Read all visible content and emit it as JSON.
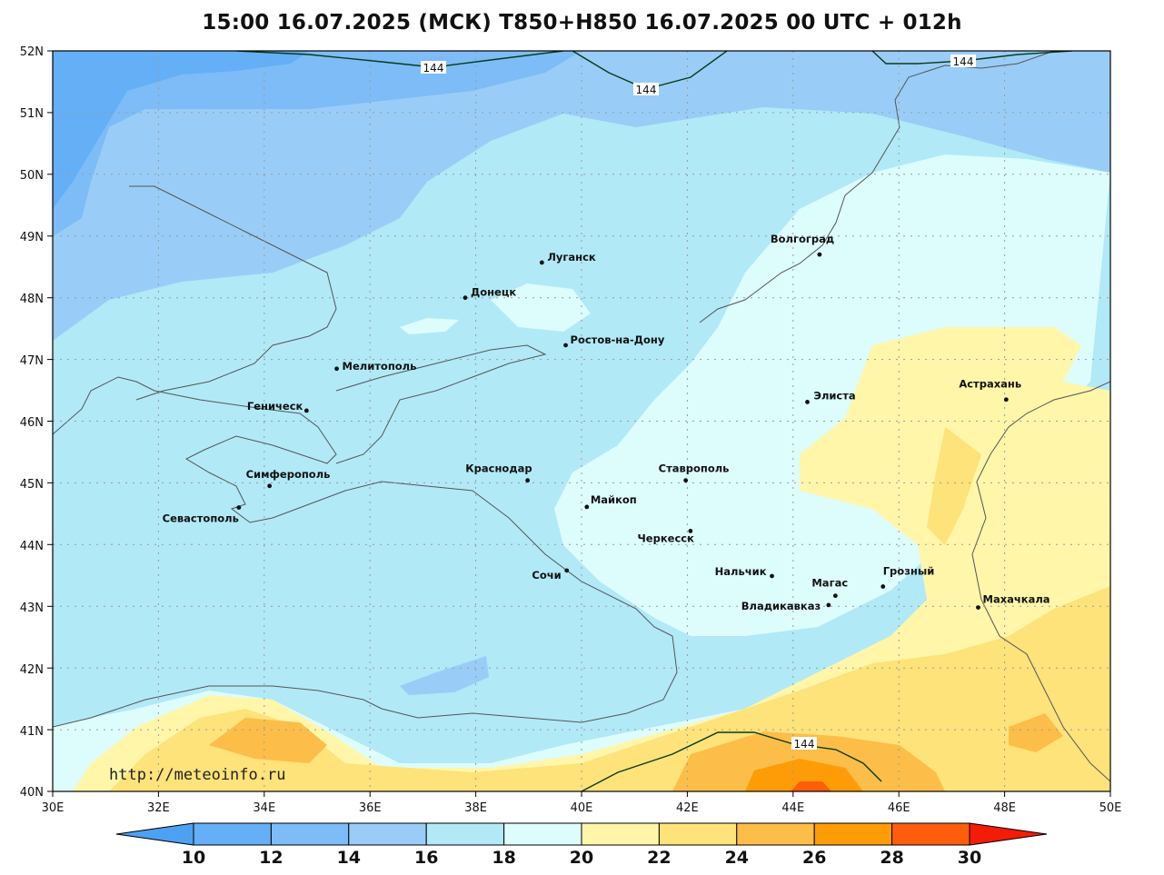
{
  "title": "15:00 16.07.2025 (МСК) T850+H850 16.07.2025 00 UTC + 012h",
  "watermark": "http://meteoinfo.ru",
  "map": {
    "lon_range": [
      30,
      50
    ],
    "lat_range": [
      40,
      52
    ],
    "lon_ticks": [
      "30E",
      "32E",
      "34E",
      "36E",
      "38E",
      "40E",
      "42E",
      "44E",
      "46E",
      "48E",
      "50E"
    ],
    "lat_ticks": [
      "52N",
      "51N",
      "50N",
      "49N",
      "48N",
      "47N",
      "46N",
      "45N",
      "44N",
      "43N",
      "42N",
      "41N",
      "40N"
    ],
    "gridlines": true
  },
  "contour_labels": [
    "144",
    "144",
    "144",
    "144"
  ],
  "cities": [
    {
      "name": "Луганск",
      "lon": 39.25,
      "lat": 48.57
    },
    {
      "name": "Донецк",
      "lon": 37.8,
      "lat": 48.0
    },
    {
      "name": "Ростов-на-Дону",
      "lon": 39.7,
      "lat": 47.23
    },
    {
      "name": "Мелитополь",
      "lon": 35.37,
      "lat": 46.85
    },
    {
      "name": "Геническ",
      "lon": 34.8,
      "lat": 46.17
    },
    {
      "name": "Симферополь",
      "lon": 34.1,
      "lat": 44.95
    },
    {
      "name": "Севастополь",
      "lon": 33.52,
      "lat": 44.6
    },
    {
      "name": "Краснодар",
      "lon": 38.98,
      "lat": 45.04
    },
    {
      "name": "Майкоп",
      "lon": 40.1,
      "lat": 44.61
    },
    {
      "name": "Сочи",
      "lon": 39.72,
      "lat": 43.58
    },
    {
      "name": "Ставрополь",
      "lon": 41.97,
      "lat": 45.04
    },
    {
      "name": "Черкесск",
      "lon": 42.06,
      "lat": 44.22
    },
    {
      "name": "Нальчик",
      "lon": 43.6,
      "lat": 43.49
    },
    {
      "name": "Волгоград",
      "lon": 44.5,
      "lat": 48.7
    },
    {
      "name": "Элиста",
      "lon": 44.27,
      "lat": 46.31
    },
    {
      "name": "Астрахань",
      "lon": 48.03,
      "lat": 46.35
    },
    {
      "name": "Магас",
      "lon": 44.8,
      "lat": 43.17
    },
    {
      "name": "Грозный",
      "lon": 45.7,
      "lat": 43.32
    },
    {
      "name": "Владикавказ",
      "lon": 44.67,
      "lat": 43.02
    },
    {
      "name": "Махачкала",
      "lon": 47.5,
      "lat": 42.98
    }
  ],
  "colorbar": {
    "labels": [
      "10",
      "12",
      "14",
      "16",
      "18",
      "20",
      "22",
      "24",
      "26",
      "28",
      "30"
    ],
    "colors": [
      "#4ea1f2",
      "#64aff5",
      "#7dbcf6",
      "#99cdf7",
      "#b1e9f7",
      "#ddfcfc",
      "#fff6a9",
      "#fee27a",
      "#fcbe49",
      "#fd9c07",
      "#fe5d0b",
      "#f31c07"
    ]
  },
  "colors": {
    "t_10_12": "#64aff5",
    "t_12_14": "#7dbcf6",
    "t_14_16": "#99cdf7",
    "t_16_18": "#b1e9f7",
    "t_18_20": "#ddfcfc",
    "t_20_22": "#fff6a9",
    "t_22_24": "#fee27a",
    "t_24_26": "#fcbe49",
    "t_26_28": "#fd9c07",
    "t_28_30": "#fe5d0b",
    "coast": "#555555",
    "contour": "#0a3a1a"
  }
}
